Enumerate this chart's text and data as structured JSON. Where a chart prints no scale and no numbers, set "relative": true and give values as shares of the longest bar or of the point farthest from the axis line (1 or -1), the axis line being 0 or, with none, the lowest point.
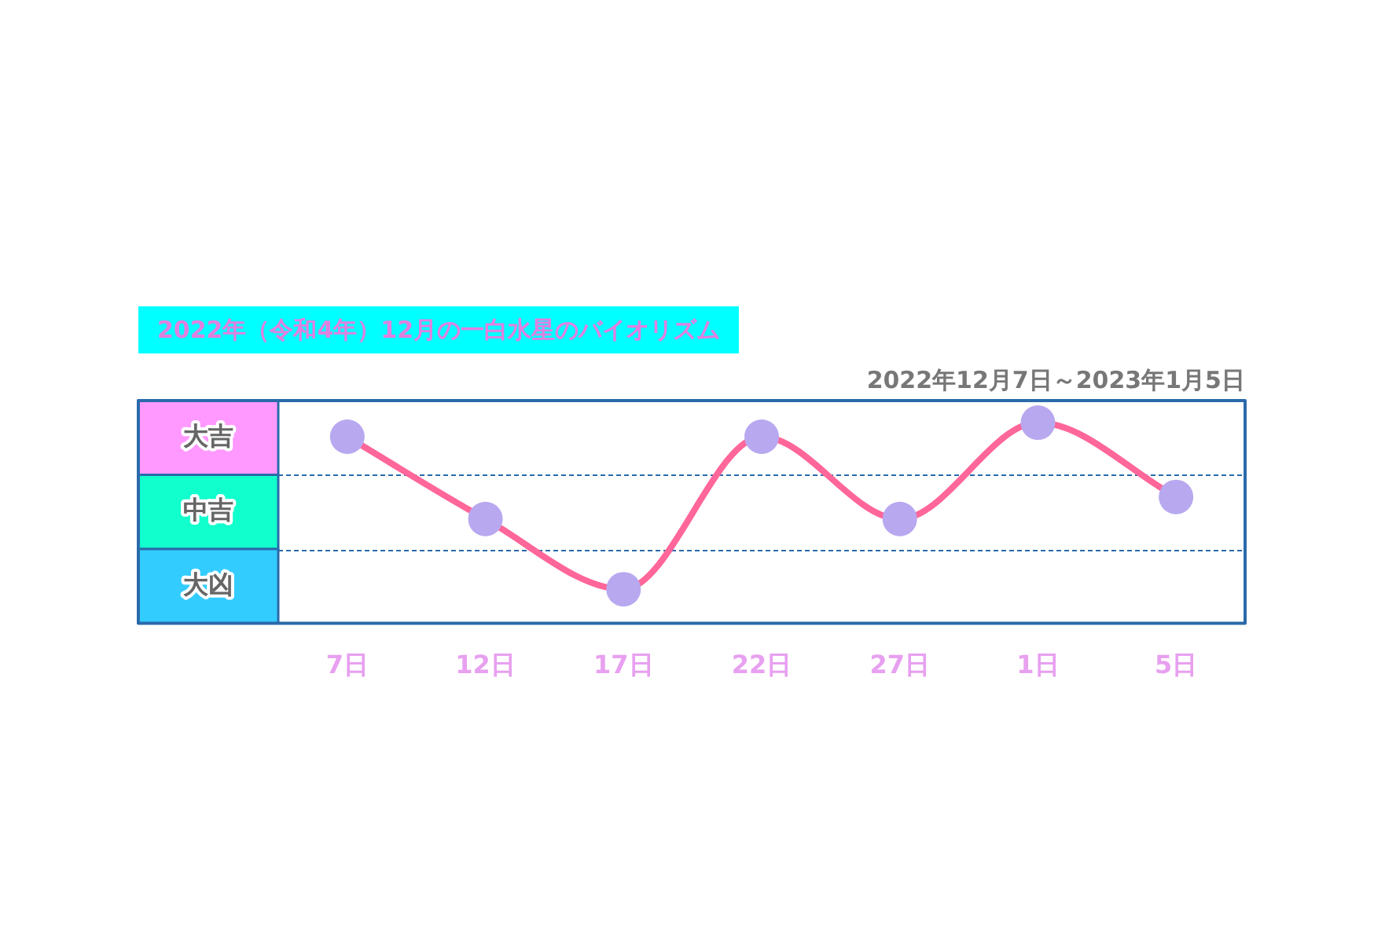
{
  "chart_data": {
    "type": "line",
    "title": "2022年（令和4年）12月の一白水星のバイオリズム",
    "subtitle": "2022年12月7日～2023年1月5日",
    "categories": [
      "7日",
      "12日",
      "17日",
      "22日",
      "27日",
      "1日",
      "5日"
    ],
    "series": [
      {
        "color": "#ff6699",
        "values": [
          0.93,
          0.52,
          0.17,
          0.93,
          0.52,
          1,
          0.63
        ]
      }
    ],
    "relative": true,
    "ref_lines": [
      {
        "axis": "y",
        "value": 0.74,
        "color": "#2a6aaa",
        "line_style": "dashed"
      },
      {
        "axis": "y",
        "value": 0.37,
        "color": "#2a6aaa",
        "line_style": "dashed"
      }
    ],
    "marker": "circle",
    "line_style": "solid",
    "annotations": [
      "大吉",
      "中吉",
      "大凶"
    ]
  }
}
